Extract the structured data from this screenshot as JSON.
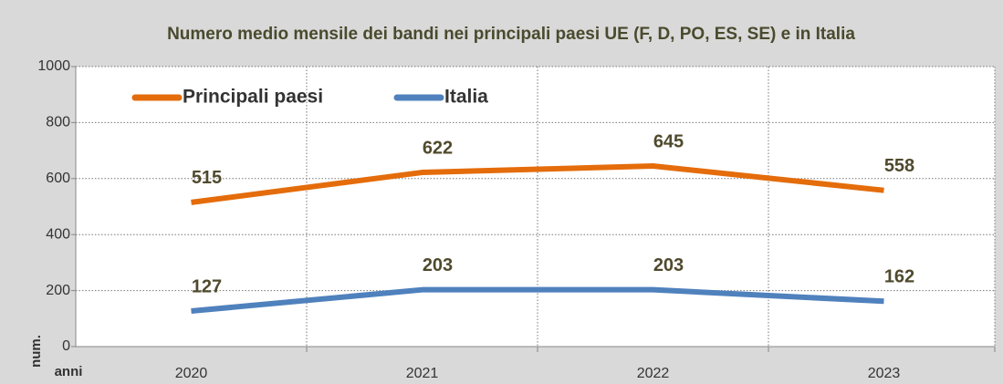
{
  "chart_data": {
    "type": "line",
    "title": "Numero medio mensile dei bandi nei principali  paesi UE (F, D, PO, ES, SE) e in Italia",
    "y_label": "num.",
    "x_label": "anni",
    "categories": [
      "2020",
      "2021",
      "2022",
      "2023"
    ],
    "series": [
      {
        "name": "Principali paesi",
        "color": "#e46c0a",
        "values": [
          515,
          622,
          645,
          558
        ]
      },
      {
        "name": "Italia",
        "color": "#4f81bd",
        "values": [
          127,
          203,
          203,
          162
        ]
      }
    ],
    "ylim": [
      0,
      1000
    ],
    "yticks": [
      0,
      200,
      400,
      600,
      800,
      1000
    ],
    "grid": true,
    "legend": "upper left",
    "data_labels": true
  }
}
